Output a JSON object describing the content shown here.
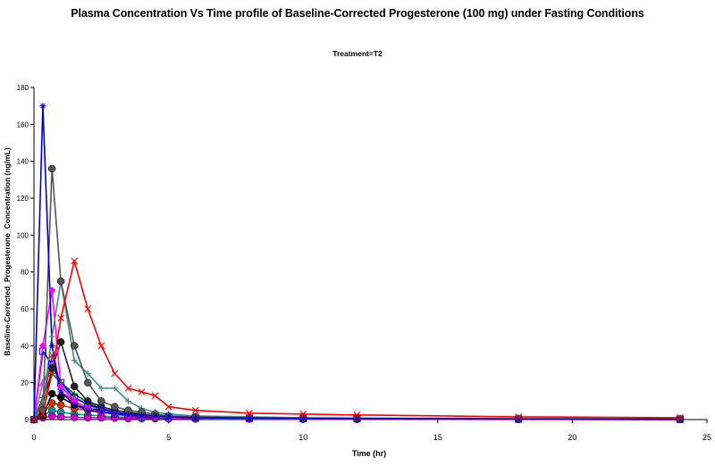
{
  "chart_data": {
    "type": "line",
    "title": "Plasma Concentration Vs Time profile of Baseline-Corrected Progesterone (100 mg) under Fasting Conditions",
    "subtitle": "Treatment=T2",
    "xlabel": "Time (hr)",
    "ylabel": "Baseline-Corrected_Progesterone_Concentration (ng/mL)",
    "xlim": [
      0,
      25
    ],
    "ylim": [
      0,
      180
    ],
    "xticks": [
      0,
      5,
      10,
      15,
      20,
      25
    ],
    "yticks": [
      0,
      20,
      40,
      60,
      80,
      100,
      120,
      140,
      160,
      180
    ],
    "grid": false,
    "legend": "none",
    "x": [
      0,
      0.33,
      0.67,
      1,
      1.5,
      2,
      2.5,
      3,
      3.5,
      4,
      4.5,
      5,
      6,
      8,
      10,
      12,
      18,
      24
    ],
    "series": [
      {
        "color": "#ff0000",
        "marker": "x",
        "values": [
          0,
          3,
          25,
          55,
          86,
          60,
          40,
          25,
          17,
          15,
          13,
          7,
          5,
          3.5,
          3,
          2.5,
          1.5,
          1
        ]
      },
      {
        "color": "#0000cc",
        "marker": "star",
        "values": [
          0,
          170,
          40,
          15,
          8,
          5,
          4,
          3,
          2.5,
          2,
          2,
          1.5,
          1,
          0.8,
          0.6,
          0.5,
          0.3,
          0.2
        ]
      },
      {
        "color": "#555555",
        "marker": "dot",
        "values": [
          0,
          5,
          136,
          75,
          40,
          20,
          10,
          7,
          5,
          4,
          3,
          2,
          1.5,
          1,
          0.8,
          0.6,
          0.4,
          0.3
        ]
      },
      {
        "color": "#3d8b8b",
        "marker": "plus",
        "values": [
          0,
          10,
          45,
          75,
          32,
          25,
          17,
          17,
          10,
          6,
          4,
          3,
          2,
          1.5,
          1,
          0.8,
          0.5,
          0.3
        ]
      },
      {
        "color": "#ff00ff",
        "marker": "diamond",
        "values": [
          0,
          40,
          70,
          18,
          10,
          6,
          4,
          3,
          2,
          2,
          1.5,
          1,
          0.8,
          0.5,
          0.4,
          0.3,
          0.2,
          0.1
        ]
      },
      {
        "color": "#0000ff",
        "marker": "square",
        "values": [
          0,
          37,
          30,
          20,
          12,
          8,
          6,
          4,
          3,
          2.5,
          2,
          1.5,
          1,
          0.8,
          0.6,
          0.5,
          0.3,
          0.2
        ]
      },
      {
        "color": "#222222",
        "marker": "dot",
        "values": [
          0,
          3,
          28,
          42,
          18,
          10,
          7,
          5,
          4,
          3,
          2,
          1.5,
          1,
          0.8,
          0.6,
          0.4,
          0.3,
          0.2
        ]
      },
      {
        "color": "#993333",
        "marker": "x",
        "values": [
          0,
          8,
          35,
          15,
          10,
          6,
          4,
          3,
          2.5,
          2,
          1.5,
          1,
          0.8,
          0.6,
          0.4,
          0.3,
          0.2,
          0.1
        ]
      },
      {
        "color": "#006600",
        "marker": "plus",
        "values": [
          0,
          12,
          25,
          20,
          14,
          9,
          6,
          4,
          3,
          2.5,
          2,
          1.5,
          1,
          0.8,
          0.6,
          0.5,
          0.3,
          0.2
        ]
      },
      {
        "color": "#9966cc",
        "marker": "triangle",
        "values": [
          0,
          20,
          30,
          18,
          12,
          8,
          5,
          4,
          3,
          2,
          1.5,
          1,
          0.8,
          0.6,
          0.5,
          0.4,
          0.2,
          0.1
        ]
      },
      {
        "color": "#000000",
        "marker": "dot",
        "values": [
          0,
          2,
          14,
          12,
          8,
          6,
          5,
          3,
          2,
          1.5,
          1,
          0.8,
          0.6,
          0.5,
          0.4,
          0.3,
          0.2,
          0.1
        ]
      },
      {
        "color": "#cc3300",
        "marker": "dot",
        "values": [
          0,
          3,
          9,
          8,
          6,
          5,
          4,
          3,
          2,
          1.5,
          1,
          0.8,
          0.6,
          0.5,
          0.4,
          0.3,
          0.2,
          0.1
        ]
      },
      {
        "color": "#cc00cc",
        "marker": "dot",
        "values": [
          0,
          1,
          2,
          1.5,
          1.2,
          1,
          1,
          0.8,
          0.6,
          0.5,
          0.5,
          0.4,
          0.3,
          0.3,
          0.2,
          0.2,
          0.1,
          0.1
        ]
      },
      {
        "color": "#009999",
        "marker": "dot",
        "values": [
          0,
          2,
          5,
          4,
          3,
          2.5,
          2,
          1.5,
          1.2,
          1,
          0.8,
          0.6,
          0.5,
          0.4,
          0.3,
          0.2,
          0.2,
          0.1
        ]
      }
    ]
  }
}
